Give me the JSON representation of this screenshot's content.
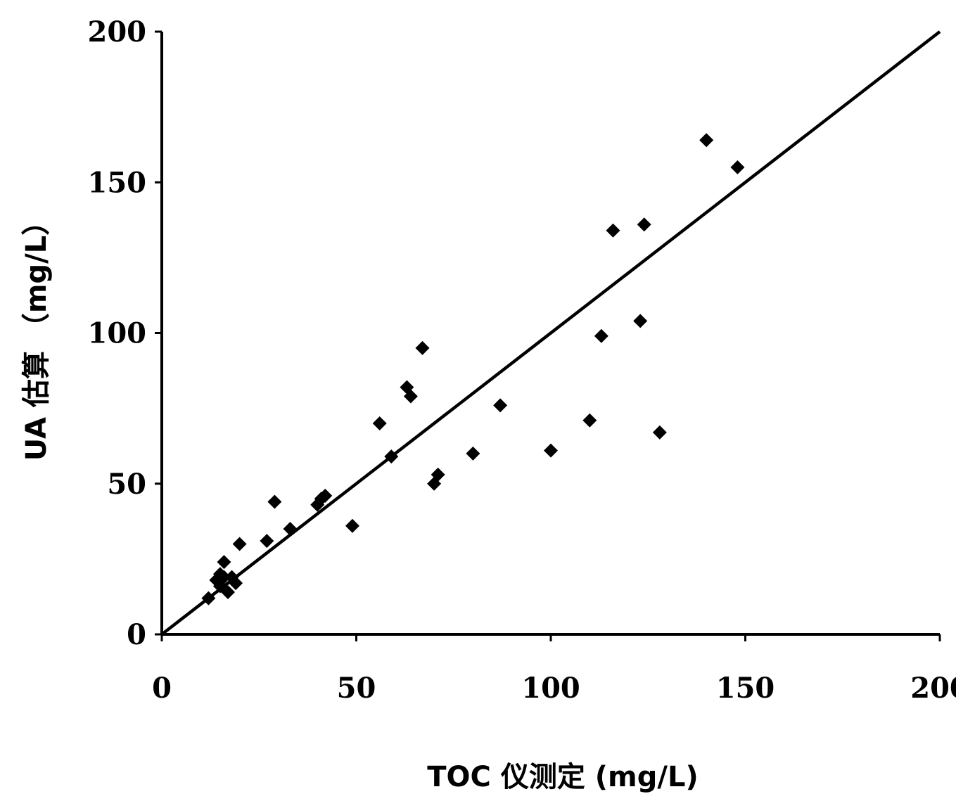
{
  "chart_data": {
    "type": "scatter",
    "title": "",
    "xlabel": "TOC 仪测定 (mg/L)",
    "ylabel": "UA 估算 （mg/L）",
    "xlim": [
      0,
      200
    ],
    "ylim": [
      0,
      200
    ],
    "x_ticks": [
      "0",
      "50",
      "100",
      "150",
      "200"
    ],
    "y_ticks": [
      "0",
      "50",
      "100",
      "150",
      "200"
    ],
    "grid": false,
    "legend": "none",
    "marker": "diamond",
    "marker_color": "#000000",
    "line_color": "#000000",
    "reference_line": {
      "x": [
        0,
        200
      ],
      "y": [
        0,
        200
      ]
    },
    "points": [
      {
        "x": 12,
        "y": 12
      },
      {
        "x": 14,
        "y": 18
      },
      {
        "x": 15,
        "y": 20
      },
      {
        "x": 15,
        "y": 16
      },
      {
        "x": 16,
        "y": 19
      },
      {
        "x": 16,
        "y": 24
      },
      {
        "x": 17,
        "y": 14
      },
      {
        "x": 18,
        "y": 19
      },
      {
        "x": 19,
        "y": 17
      },
      {
        "x": 20,
        "y": 30
      },
      {
        "x": 27,
        "y": 31
      },
      {
        "x": 29,
        "y": 44
      },
      {
        "x": 33,
        "y": 35
      },
      {
        "x": 40,
        "y": 43
      },
      {
        "x": 41,
        "y": 45
      },
      {
        "x": 42,
        "y": 46
      },
      {
        "x": 49,
        "y": 36
      },
      {
        "x": 56,
        "y": 70
      },
      {
        "x": 59,
        "y": 59
      },
      {
        "x": 63,
        "y": 82
      },
      {
        "x": 64,
        "y": 79
      },
      {
        "x": 67,
        "y": 95
      },
      {
        "x": 70,
        "y": 50
      },
      {
        "x": 71,
        "y": 53
      },
      {
        "x": 80,
        "y": 60
      },
      {
        "x": 87,
        "y": 76
      },
      {
        "x": 100,
        "y": 61
      },
      {
        "x": 110,
        "y": 71
      },
      {
        "x": 113,
        "y": 99
      },
      {
        "x": 116,
        "y": 134
      },
      {
        "x": 123,
        "y": 104
      },
      {
        "x": 124,
        "y": 136
      },
      {
        "x": 128,
        "y": 67
      },
      {
        "x": 140,
        "y": 164
      },
      {
        "x": 148,
        "y": 155
      }
    ]
  }
}
